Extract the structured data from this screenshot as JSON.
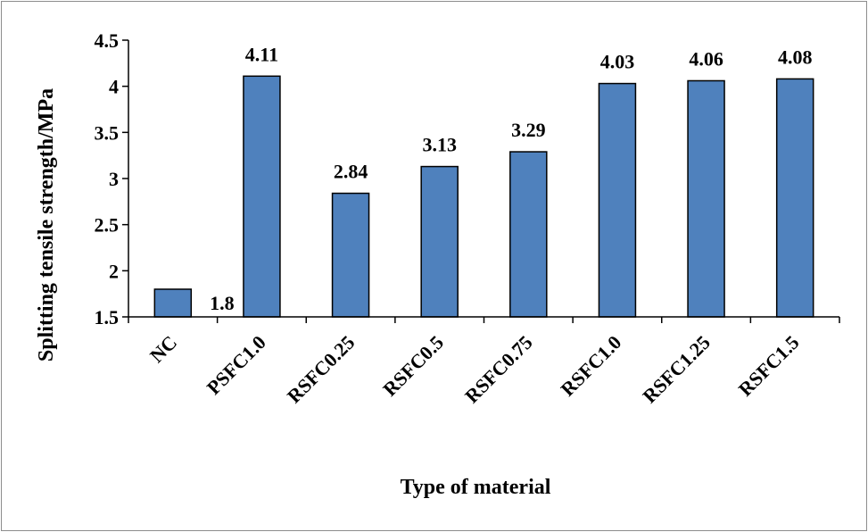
{
  "chart_data": {
    "type": "bar",
    "categories": [
      "NC",
      "PSFC1.0",
      "RSFC0.25",
      "RSFC0.5",
      "RSFC0.75",
      "RSFC1.0",
      "RSFC1.25",
      "RSFC1.5"
    ],
    "values": [
      1.8,
      4.11,
      2.84,
      3.13,
      3.29,
      4.03,
      4.06,
      4.08
    ],
    "data_labels": [
      "1.8",
      "4.11",
      "2.84",
      "3.13",
      "3.29",
      "4.03",
      "4.06",
      "4.08"
    ],
    "title": "",
    "xlabel": "Type of material",
    "ylabel": "Splitting tensile strength/MPa",
    "ylim": [
      1.5,
      4.5
    ],
    "yticks": [
      1.5,
      2,
      2.5,
      3,
      3.5,
      4,
      4.5
    ],
    "ytick_labels": [
      "1.5",
      "2",
      "2.5",
      "3",
      "3.5",
      "4",
      "4.5"
    ],
    "grid": false,
    "legend": "none",
    "bar_color": "#4f81bd",
    "bar_edge_color": "#000000"
  }
}
